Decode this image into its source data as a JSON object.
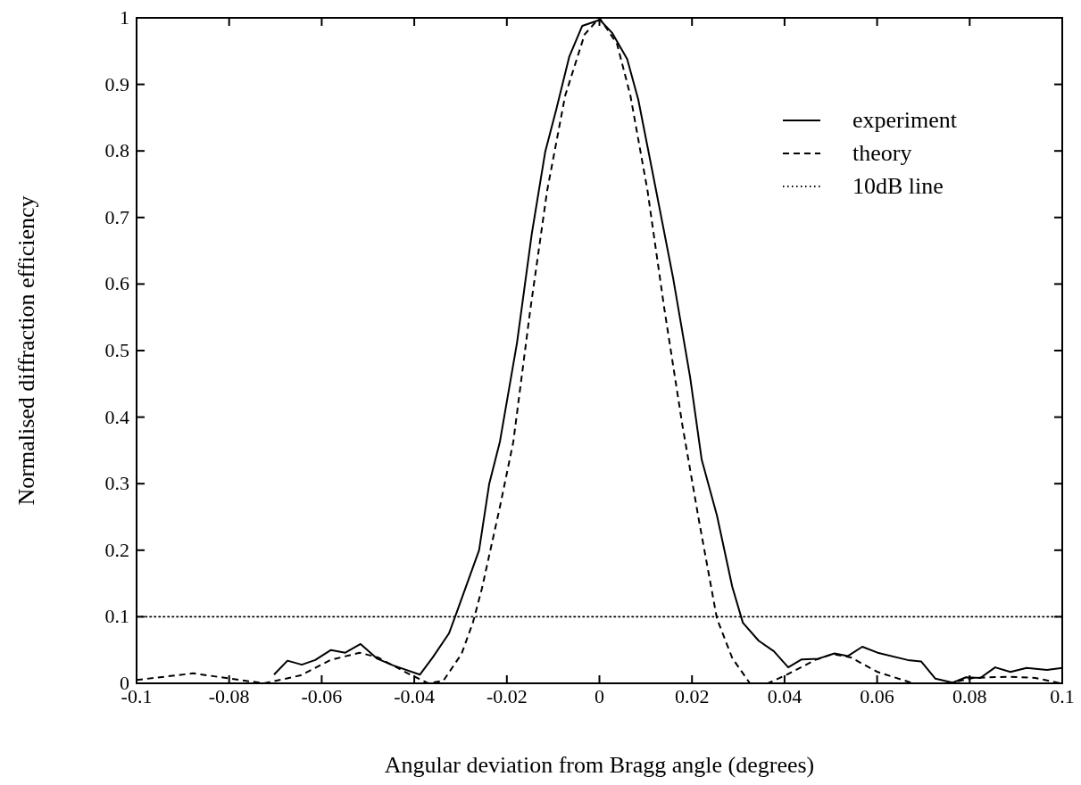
{
  "chart_data": {
    "type": "line",
    "xlabel": "Angular deviation from Bragg angle (degrees)",
    "ylabel": "Normalised diffraction efficiency",
    "xlim": [
      -0.1,
      0.1
    ],
    "ylim": [
      0,
      1
    ],
    "xticks": [
      -0.1,
      -0.08,
      -0.06,
      -0.04,
      -0.02,
      0,
      0.02,
      0.04,
      0.06,
      0.08,
      0.1
    ],
    "yticks": [
      0,
      0.1,
      0.2,
      0.3,
      0.4,
      0.5,
      0.6,
      0.7,
      0.8,
      0.9,
      1
    ],
    "grid": false,
    "legend": "top right",
    "series": [
      {
        "name": "experiment",
        "color": "#000000",
        "line_style": "solid",
        "x": [
          -0.0703,
          -0.0674,
          -0.0643,
          -0.0614,
          -0.058,
          -0.0549,
          -0.0516,
          -0.048,
          -0.0446,
          -0.0388,
          -0.036,
          -0.0325,
          -0.0306,
          -0.026,
          -0.0238,
          -0.0215,
          -0.0178,
          -0.0146,
          -0.0117,
          -0.0093,
          -0.0065,
          -0.0037,
          0.0001,
          0.0028,
          0.006,
          0.0084,
          0.0117,
          0.0159,
          0.0196,
          0.0221,
          0.0254,
          0.0287,
          0.031,
          0.0344,
          0.0377,
          0.0408,
          0.0437,
          0.0473,
          0.0508,
          0.0537,
          0.0568,
          0.0601,
          0.0666,
          0.0695,
          0.0726,
          0.0763,
          0.0792,
          0.0823,
          0.0855,
          0.0888,
          0.0923,
          0.0967,
          0.1
        ],
        "values": [
          0.013,
          0.034,
          0.028,
          0.035,
          0.05,
          0.046,
          0.059,
          0.037,
          0.027,
          0.013,
          0.039,
          0.075,
          0.111,
          0.2,
          0.3,
          0.363,
          0.512,
          0.676,
          0.799,
          0.863,
          0.942,
          0.988,
          0.997,
          0.977,
          0.938,
          0.877,
          0.76,
          0.61,
          0.46,
          0.336,
          0.252,
          0.145,
          0.091,
          0.064,
          0.048,
          0.024,
          0.036,
          0.037,
          0.045,
          0.041,
          0.055,
          0.046,
          0.035,
          0.033,
          0.007,
          0.001,
          0.009,
          0.008,
          0.024,
          0.017,
          0.023,
          0.02,
          0.023
        ]
      },
      {
        "name": "theory",
        "color": "#000000",
        "line_style": "dashed",
        "x": [
          -0.1,
          -0.0877,
          -0.0807,
          -0.0725,
          -0.0645,
          -0.0581,
          -0.0518,
          -0.0479,
          -0.0414,
          -0.037,
          -0.0337,
          -0.0298,
          -0.0273,
          -0.0254,
          -0.0215,
          -0.0186,
          -0.015,
          -0.0113,
          -0.0074,
          -0.0032,
          0,
          0.0038,
          0.0067,
          0.0104,
          0.014,
          0.0179,
          0.0215,
          0.0254,
          0.0287,
          0.0325,
          0.0364,
          0.0402,
          0.0466,
          0.0504,
          0.0543,
          0.0601,
          0.0678,
          0.0755,
          0.0807,
          0.0884,
          0.0942,
          0.0996
        ],
        "values": [
          0.005,
          0.015,
          0.008,
          0,
          0.012,
          0.035,
          0.046,
          0.039,
          0.015,
          0,
          0.004,
          0.044,
          0.092,
          0.142,
          0.265,
          0.363,
          0.558,
          0.74,
          0.883,
          0.975,
          1,
          0.961,
          0.883,
          0.74,
          0.564,
          0.389,
          0.245,
          0.097,
          0.038,
          0,
          0,
          0.012,
          0.035,
          0.044,
          0.039,
          0.017,
          0,
          0,
          0.008,
          0.01,
          0.008,
          0
        ]
      },
      {
        "name": "10dB line",
        "color": "#000000",
        "line_style": "dotted",
        "x": [
          -0.1,
          0.1
        ],
        "values": [
          0.1,
          0.1
        ]
      }
    ]
  }
}
